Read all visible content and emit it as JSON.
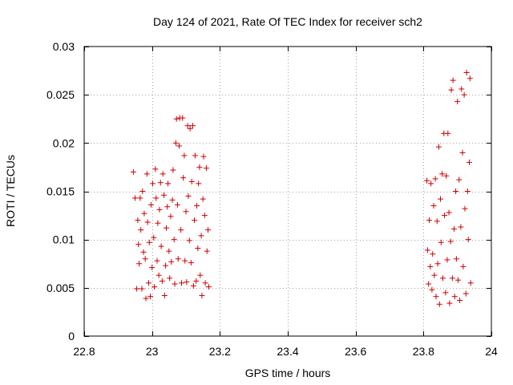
{
  "chart_data": {
    "type": "scatter",
    "title": "Day 124 of 2021, Rate Of TEC Index for receiver sch2",
    "xlabel": "GPS time / hours",
    "ylabel": "ROTI / TECUs",
    "xlim": [
      22.8,
      24
    ],
    "ylim": [
      0,
      0.03
    ],
    "x_ticks": [
      22.8,
      23,
      23.2,
      23.4,
      23.6,
      23.8,
      24
    ],
    "x_tick_labels": [
      "22.8",
      "23",
      "23.2",
      "23.4",
      "23.6",
      "23.8",
      "24"
    ],
    "y_ticks": [
      0,
      0.005,
      0.01,
      0.015,
      0.02,
      0.025,
      0.03
    ],
    "y_tick_labels": [
      "0",
      "0.005",
      "0.01",
      "0.015",
      "0.02",
      "0.025",
      "0.03"
    ],
    "grid": true,
    "marker": "+",
    "color": "#cc0000",
    "series": [
      {
        "name": "sch2",
        "points": [
          [
            22.945,
            0.017
          ],
          [
            22.95,
            0.0143
          ],
          [
            22.955,
            0.0049
          ],
          [
            22.958,
            0.012
          ],
          [
            22.96,
            0.0095
          ],
          [
            22.962,
            0.0075
          ],
          [
            22.965,
            0.0143
          ],
          [
            22.967,
            0.011
          ],
          [
            22.97,
            0.0049
          ],
          [
            22.972,
            0.015
          ],
          [
            22.975,
            0.0087
          ],
          [
            22.977,
            0.0127
          ],
          [
            22.98,
            0.008
          ],
          [
            22.982,
            0.0039
          ],
          [
            22.985,
            0.0168
          ],
          [
            22.987,
            0.0118
          ],
          [
            22.99,
            0.0055
          ],
          [
            22.992,
            0.0097
          ],
          [
            22.995,
            0.0041
          ],
          [
            22.997,
            0.0136
          ],
          [
            23.0,
            0.0071
          ],
          [
            23.002,
            0.0158
          ],
          [
            23.005,
            0.0102
          ],
          [
            23.007,
            0.0051
          ],
          [
            23.01,
            0.0173
          ],
          [
            23.012,
            0.0143
          ],
          [
            23.015,
            0.0078
          ],
          [
            23.017,
            0.0117
          ],
          [
            23.02,
            0.0063
          ],
          [
            23.022,
            0.0131
          ],
          [
            23.025,
            0.0159
          ],
          [
            23.027,
            0.0093
          ],
          [
            23.03,
            0.0057
          ],
          [
            23.032,
            0.0168
          ],
          [
            23.035,
            0.0146
          ],
          [
            23.037,
            0.0042
          ],
          [
            23.04,
            0.0073
          ],
          [
            23.042,
            0.0112
          ],
          [
            23.045,
            0.0134
          ],
          [
            23.047,
            0.0158
          ],
          [
            23.05,
            0.0088
          ],
          [
            23.052,
            0.006
          ],
          [
            23.055,
            0.0124
          ],
          [
            23.057,
            0.0077
          ],
          [
            23.06,
            0.0141
          ],
          [
            23.062,
            0.0172
          ],
          [
            23.065,
            0.01
          ],
          [
            23.067,
            0.0054
          ],
          [
            23.07,
            0.02
          ],
          [
            23.072,
            0.0225
          ],
          [
            23.075,
            0.0136
          ],
          [
            23.077,
            0.008
          ],
          [
            23.08,
            0.0197
          ],
          [
            23.082,
            0.0226
          ],
          [
            23.085,
            0.011
          ],
          [
            23.087,
            0.0055
          ],
          [
            23.09,
            0.0226
          ],
          [
            23.092,
            0.0164
          ],
          [
            23.095,
            0.0187
          ],
          [
            23.097,
            0.0078
          ],
          [
            23.1,
            0.0129
          ],
          [
            23.102,
            0.0056
          ],
          [
            23.105,
            0.0218
          ],
          [
            23.107,
            0.0145
          ],
          [
            23.11,
            0.0099
          ],
          [
            23.112,
            0.0215
          ],
          [
            23.115,
            0.0076
          ],
          [
            23.117,
            0.016
          ],
          [
            23.12,
            0.0218
          ],
          [
            23.122,
            0.0052
          ],
          [
            23.125,
            0.012
          ],
          [
            23.127,
            0.0187
          ],
          [
            23.13,
            0.0057
          ],
          [
            23.132,
            0.0135
          ],
          [
            23.135,
            0.0091
          ],
          [
            23.137,
            0.0158
          ],
          [
            23.14,
            0.0175
          ],
          [
            23.142,
            0.0063
          ],
          [
            23.145,
            0.0104
          ],
          [
            23.147,
            0.0042
          ],
          [
            23.15,
            0.0142
          ],
          [
            23.152,
            0.0186
          ],
          [
            23.155,
            0.0125
          ],
          [
            23.157,
            0.0055
          ],
          [
            23.16,
            0.0174
          ],
          [
            23.162,
            0.0088
          ],
          [
            23.165,
            0.011
          ],
          [
            23.167,
            0.0051
          ],
          [
            23.81,
            0.0161
          ],
          [
            23.812,
            0.0089
          ],
          [
            23.815,
            0.0054
          ],
          [
            23.817,
            0.012
          ],
          [
            23.82,
            0.0072
          ],
          [
            23.822,
            0.0158
          ],
          [
            23.825,
            0.0048
          ],
          [
            23.827,
            0.0085
          ],
          [
            23.83,
            0.0135
          ],
          [
            23.832,
            0.0063
          ],
          [
            23.835,
            0.0163
          ],
          [
            23.837,
            0.0041
          ],
          [
            23.84,
            0.0119
          ],
          [
            23.842,
            0.0075
          ],
          [
            23.845,
            0.0196
          ],
          [
            23.847,
            0.0033
          ],
          [
            23.85,
            0.0142
          ],
          [
            23.852,
            0.0097
          ],
          [
            23.855,
            0.0168
          ],
          [
            23.857,
            0.006
          ],
          [
            23.86,
            0.021
          ],
          [
            23.862,
            0.0125
          ],
          [
            23.865,
            0.0045
          ],
          [
            23.867,
            0.0166
          ],
          [
            23.87,
            0.0079
          ],
          [
            23.872,
            0.021
          ],
          [
            23.875,
            0.0128
          ],
          [
            23.877,
            0.0034
          ],
          [
            23.88,
            0.0098
          ],
          [
            23.882,
            0.0255
          ],
          [
            23.885,
            0.006
          ],
          [
            23.887,
            0.0265
          ],
          [
            23.89,
            0.0111
          ],
          [
            23.892,
            0.0041
          ],
          [
            23.895,
            0.015
          ],
          [
            23.897,
            0.008
          ],
          [
            23.9,
            0.0243
          ],
          [
            23.902,
            0.0058
          ],
          [
            23.905,
            0.0162
          ],
          [
            23.907,
            0.0037
          ],
          [
            23.91,
            0.0113
          ],
          [
            23.912,
            0.0256
          ],
          [
            23.915,
            0.019
          ],
          [
            23.917,
            0.0072
          ],
          [
            23.92,
            0.025
          ],
          [
            23.922,
            0.0132
          ],
          [
            23.925,
            0.0044
          ],
          [
            23.927,
            0.0273
          ],
          [
            23.93,
            0.015
          ],
          [
            23.932,
            0.01
          ],
          [
            23.935,
            0.018
          ],
          [
            23.937,
            0.0267
          ],
          [
            23.939,
            0.0055
          ]
        ]
      }
    ]
  }
}
